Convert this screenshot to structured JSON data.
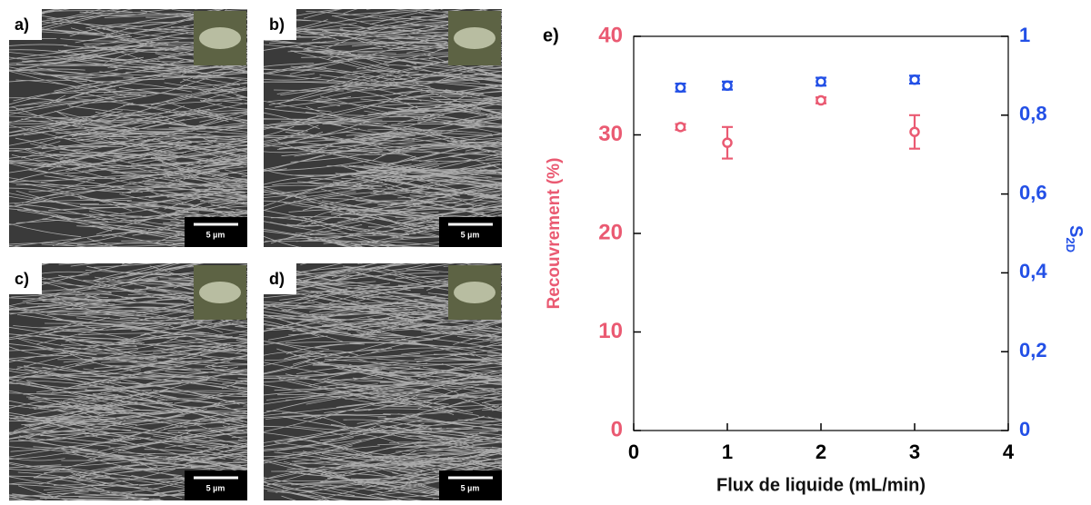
{
  "panels": [
    {
      "label": "a)",
      "scale_bar": "5 µm"
    },
    {
      "label": "b)",
      "scale_bar": "5 µm"
    },
    {
      "label": "c)",
      "scale_bar": "5 µm"
    },
    {
      "label": "d)",
      "scale_bar": "5 µm"
    }
  ],
  "chart_data": {
    "type": "scatter",
    "panel_label": "e)",
    "xlabel": "Flux de liquide (mL/min)",
    "ylabel": "Recouvrement (%)",
    "y2label": [
      "S",
      "2D"
    ],
    "x": [
      0.5,
      1,
      2,
      3
    ],
    "series": [
      {
        "color": "#ea5a72",
        "values": [
          30.8,
          29.2,
          33.5,
          30.3
        ],
        "errors": [
          0.3,
          1.6,
          0.3,
          1.7
        ]
      },
      {
        "color": "#2350e6",
        "axis": "y2",
        "values": [
          0.87,
          0.875,
          0.885,
          0.89
        ],
        "errors": [
          0.01,
          0.01,
          0.01,
          0.01
        ]
      }
    ],
    "xlim": [
      0,
      4
    ],
    "xticks": [
      0,
      1,
      2,
      3,
      4
    ],
    "ylim": [
      0,
      40
    ],
    "yticks": [
      0,
      10,
      20,
      30,
      40
    ],
    "y2lim": [
      0,
      1
    ],
    "y2ticks": [
      0,
      {
        "value": 0.2,
        "label": "0,2"
      },
      {
        "value": 0.4,
        "label": "0,4"
      },
      {
        "value": 0.6,
        "label": "0,6"
      },
      {
        "value": 0.8,
        "label": "0,8"
      },
      1
    ]
  }
}
